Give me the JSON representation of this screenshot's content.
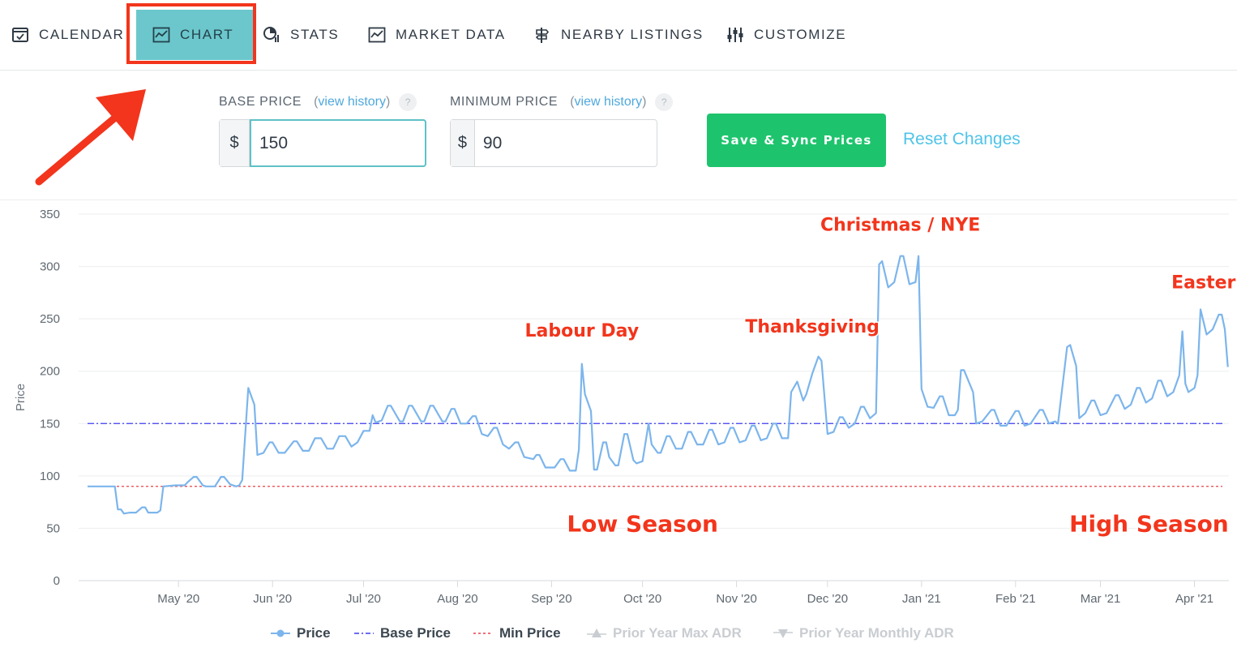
{
  "nav": {
    "tabs": [
      {
        "label": "CALENDAR",
        "icon": "calendar-check-icon"
      },
      {
        "label": "CHART",
        "icon": "line-chart-icon",
        "active": true
      },
      {
        "label": "STATS",
        "icon": "pie-stats-icon"
      },
      {
        "label": "MARKET DATA",
        "icon": "line-chart-icon"
      },
      {
        "label": "NEARBY LISTINGS",
        "icon": "signpost-icon"
      },
      {
        "label": "CUSTOMIZE",
        "icon": "sliders-icon"
      }
    ]
  },
  "pricing": {
    "base": {
      "label": "BASE PRICE",
      "history": "view history",
      "help": "?",
      "currency": "$",
      "value": "150"
    },
    "minimum": {
      "label": "MINIMUM PRICE",
      "history": "view history",
      "help": "?",
      "currency": "$",
      "value": "90"
    },
    "open_paren": "(",
    "close_paren": ")",
    "save_label": "Save & Sync Prices",
    "reset_label": "Reset Changes"
  },
  "colors": {
    "accent_tab": "#6cc7cc",
    "save_button": "#1ec46d",
    "link": "#4fc3e8",
    "price_line": "#7cb5ec",
    "base_line": "#3d3df0",
    "min_line": "#e8404a",
    "annotation": "#f2351c"
  },
  "chart_data": {
    "type": "line",
    "ylabel": "Price",
    "ylim": [
      0,
      350
    ],
    "yticks": [
      0,
      50,
      100,
      150,
      200,
      250,
      300,
      350
    ],
    "xlim": [
      "2020-04-01",
      "2021-04-07"
    ],
    "xticks": [
      {
        "label": "May '20",
        "date": "2020-05-01"
      },
      {
        "label": "Jun '20",
        "date": "2020-06-01"
      },
      {
        "label": "Jul '20",
        "date": "2020-07-01"
      },
      {
        "label": "Aug '20",
        "date": "2020-08-01"
      },
      {
        "label": "Sep '20",
        "date": "2020-09-01"
      },
      {
        "label": "Oct '20",
        "date": "2020-10-01"
      },
      {
        "label": "Nov '20",
        "date": "2020-11-01"
      },
      {
        "label": "Dec '20",
        "date": "2020-12-01"
      },
      {
        "label": "Jan '21",
        "date": "2021-01-01"
      },
      {
        "label": "Feb '21",
        "date": "2021-02-01"
      },
      {
        "label": "Mar '21",
        "date": "2021-03-01"
      },
      {
        "label": "Apr '21",
        "date": "2021-04-01"
      }
    ],
    "grid": true,
    "legend_position": "bottom",
    "series": [
      {
        "name": "Price",
        "points": [
          [
            "2020-04-01",
            90
          ],
          [
            "2020-04-10",
            90
          ],
          [
            "2020-04-11",
            68
          ],
          [
            "2020-04-12",
            68
          ],
          [
            "2020-04-13",
            64
          ],
          [
            "2020-04-15",
            65
          ],
          [
            "2020-04-17",
            65
          ],
          [
            "2020-04-19",
            70
          ],
          [
            "2020-04-20",
            70
          ],
          [
            "2020-04-21",
            65
          ],
          [
            "2020-04-24",
            65
          ],
          [
            "2020-04-25",
            67
          ],
          [
            "2020-04-26",
            90
          ],
          [
            "2020-04-30",
            91
          ],
          [
            "2020-05-03",
            91
          ],
          [
            "2020-05-04",
            94
          ],
          [
            "2020-05-06",
            99
          ],
          [
            "2020-05-07",
            99
          ],
          [
            "2020-05-09",
            91
          ],
          [
            "2020-05-10",
            90
          ],
          [
            "2020-05-13",
            90
          ],
          [
            "2020-05-15",
            99
          ],
          [
            "2020-05-16",
            99
          ],
          [
            "2020-05-18",
            92
          ],
          [
            "2020-05-20",
            90
          ],
          [
            "2020-05-21",
            91
          ],
          [
            "2020-05-22",
            96
          ],
          [
            "2020-05-24",
            184
          ],
          [
            "2020-05-26",
            168
          ],
          [
            "2020-05-27",
            120
          ],
          [
            "2020-05-29",
            122
          ],
          [
            "2020-05-31",
            132
          ],
          [
            "2020-06-01",
            132
          ],
          [
            "2020-06-03",
            122
          ],
          [
            "2020-06-05",
            122
          ],
          [
            "2020-06-08",
            133
          ],
          [
            "2020-06-09",
            133
          ],
          [
            "2020-06-11",
            124
          ],
          [
            "2020-06-13",
            124
          ],
          [
            "2020-06-15",
            136
          ],
          [
            "2020-06-17",
            136
          ],
          [
            "2020-06-19",
            126
          ],
          [
            "2020-06-21",
            126
          ],
          [
            "2020-06-23",
            138
          ],
          [
            "2020-06-25",
            138
          ],
          [
            "2020-06-27",
            128
          ],
          [
            "2020-06-29",
            132
          ],
          [
            "2020-07-01",
            143
          ],
          [
            "2020-07-03",
            143
          ],
          [
            "2020-07-04",
            158
          ],
          [
            "2020-07-05",
            151
          ],
          [
            "2020-07-07",
            153
          ],
          [
            "2020-07-09",
            167
          ],
          [
            "2020-07-10",
            167
          ],
          [
            "2020-07-13",
            152
          ],
          [
            "2020-07-14",
            152
          ],
          [
            "2020-07-16",
            167
          ],
          [
            "2020-07-17",
            167
          ],
          [
            "2020-07-20",
            152
          ],
          [
            "2020-07-21",
            152
          ],
          [
            "2020-07-23",
            167
          ],
          [
            "2020-07-24",
            167
          ],
          [
            "2020-07-27",
            152
          ],
          [
            "2020-07-28",
            152
          ],
          [
            "2020-07-30",
            164
          ],
          [
            "2020-07-31",
            164
          ],
          [
            "2020-08-02",
            150
          ],
          [
            "2020-08-04",
            150
          ],
          [
            "2020-08-06",
            157
          ],
          [
            "2020-08-07",
            157
          ],
          [
            "2020-08-09",
            140
          ],
          [
            "2020-08-11",
            138
          ],
          [
            "2020-08-13",
            146
          ],
          [
            "2020-08-14",
            146
          ],
          [
            "2020-08-16",
            130
          ],
          [
            "2020-08-18",
            126
          ],
          [
            "2020-08-20",
            132
          ],
          [
            "2020-08-21",
            132
          ],
          [
            "2020-08-23",
            118
          ],
          [
            "2020-08-26",
            116
          ],
          [
            "2020-08-27",
            120
          ],
          [
            "2020-08-28",
            120
          ],
          [
            "2020-08-30",
            108
          ],
          [
            "2020-09-02",
            108
          ],
          [
            "2020-09-04",
            116
          ],
          [
            "2020-09-05",
            116
          ],
          [
            "2020-09-07",
            105
          ],
          [
            "2020-09-09",
            105
          ],
          [
            "2020-09-10",
            125
          ],
          [
            "2020-09-11",
            207
          ],
          [
            "2020-09-12",
            178
          ],
          [
            "2020-09-14",
            162
          ],
          [
            "2020-09-15",
            106
          ],
          [
            "2020-09-16",
            106
          ],
          [
            "2020-09-18",
            132
          ],
          [
            "2020-09-19",
            132
          ],
          [
            "2020-09-20",
            118
          ],
          [
            "2020-09-22",
            110
          ],
          [
            "2020-09-23",
            110
          ],
          [
            "2020-09-25",
            140
          ],
          [
            "2020-09-26",
            140
          ],
          [
            "2020-09-28",
            115
          ],
          [
            "2020-09-29",
            112
          ],
          [
            "2020-10-01",
            114
          ],
          [
            "2020-10-03",
            150
          ],
          [
            "2020-10-04",
            130
          ],
          [
            "2020-10-06",
            122
          ],
          [
            "2020-10-07",
            122
          ],
          [
            "2020-10-09",
            138
          ],
          [
            "2020-10-10",
            138
          ],
          [
            "2020-10-12",
            126
          ],
          [
            "2020-10-14",
            126
          ],
          [
            "2020-10-16",
            142
          ],
          [
            "2020-10-17",
            142
          ],
          [
            "2020-10-19",
            130
          ],
          [
            "2020-10-21",
            130
          ],
          [
            "2020-10-23",
            144
          ],
          [
            "2020-10-24",
            144
          ],
          [
            "2020-10-26",
            130
          ],
          [
            "2020-10-28",
            132
          ],
          [
            "2020-10-30",
            146
          ],
          [
            "2020-10-31",
            146
          ],
          [
            "2020-11-02",
            132
          ],
          [
            "2020-11-04",
            134
          ],
          [
            "2020-11-06",
            148
          ],
          [
            "2020-11-07",
            148
          ],
          [
            "2020-11-09",
            134
          ],
          [
            "2020-11-11",
            136
          ],
          [
            "2020-11-13",
            150
          ],
          [
            "2020-11-14",
            150
          ],
          [
            "2020-11-16",
            136
          ],
          [
            "2020-11-18",
            136
          ],
          [
            "2020-11-19",
            180
          ],
          [
            "2020-11-21",
            190
          ],
          [
            "2020-11-23",
            172
          ],
          [
            "2020-11-24",
            178
          ],
          [
            "2020-11-26",
            198
          ],
          [
            "2020-11-28",
            214
          ],
          [
            "2020-11-29",
            210
          ],
          [
            "2020-12-01",
            140
          ],
          [
            "2020-12-03",
            142
          ],
          [
            "2020-12-05",
            156
          ],
          [
            "2020-12-06",
            156
          ],
          [
            "2020-12-08",
            146
          ],
          [
            "2020-12-10",
            150
          ],
          [
            "2020-12-12",
            166
          ],
          [
            "2020-12-13",
            166
          ],
          [
            "2020-12-15",
            155
          ],
          [
            "2020-12-17",
            160
          ],
          [
            "2020-12-18",
            302
          ],
          [
            "2020-12-19",
            305
          ],
          [
            "2020-12-21",
            280
          ],
          [
            "2020-12-23",
            285
          ],
          [
            "2020-12-25",
            310
          ],
          [
            "2020-12-26",
            310
          ],
          [
            "2020-12-28",
            283
          ],
          [
            "2020-12-30",
            285
          ],
          [
            "2020-12-31",
            310
          ],
          [
            "2021-01-01",
            183
          ],
          [
            "2021-01-03",
            166
          ],
          [
            "2021-01-05",
            165
          ],
          [
            "2021-01-07",
            176
          ],
          [
            "2021-01-08",
            176
          ],
          [
            "2021-01-10",
            158
          ],
          [
            "2021-01-12",
            158
          ],
          [
            "2021-01-13",
            163
          ],
          [
            "2021-01-14",
            201
          ],
          [
            "2021-01-15",
            201
          ],
          [
            "2021-01-18",
            180
          ],
          [
            "2021-01-19",
            150
          ],
          [
            "2021-01-21",
            152
          ],
          [
            "2021-01-24",
            163
          ],
          [
            "2021-01-25",
            163
          ],
          [
            "2021-01-27",
            148
          ],
          [
            "2021-01-29",
            148
          ],
          [
            "2021-02-01",
            162
          ],
          [
            "2021-02-02",
            162
          ],
          [
            "2021-02-04",
            148
          ],
          [
            "2021-02-06",
            150
          ],
          [
            "2021-02-09",
            163
          ],
          [
            "2021-02-10",
            163
          ],
          [
            "2021-02-12",
            150
          ],
          [
            "2021-02-14",
            152
          ],
          [
            "2021-02-15",
            150
          ],
          [
            "2021-02-18",
            223
          ],
          [
            "2021-02-19",
            225
          ],
          [
            "2021-02-21",
            205
          ],
          [
            "2021-02-22",
            155
          ],
          [
            "2021-02-24",
            160
          ],
          [
            "2021-02-26",
            172
          ],
          [
            "2021-02-27",
            172
          ],
          [
            "2021-03-01",
            158
          ],
          [
            "2021-03-03",
            160
          ],
          [
            "2021-03-06",
            177
          ],
          [
            "2021-03-07",
            177
          ],
          [
            "2021-03-09",
            164
          ],
          [
            "2021-03-11",
            168
          ],
          [
            "2021-03-13",
            184
          ],
          [
            "2021-03-14",
            184
          ],
          [
            "2021-03-16",
            170
          ],
          [
            "2021-03-18",
            174
          ],
          [
            "2021-03-20",
            191
          ],
          [
            "2021-03-21",
            191
          ],
          [
            "2021-03-23",
            176
          ],
          [
            "2021-03-25",
            180
          ],
          [
            "2021-03-27",
            196
          ],
          [
            "2021-03-28",
            238
          ],
          [
            "2021-03-29",
            188
          ],
          [
            "2021-03-30",
            180
          ],
          [
            "2021-04-01",
            184
          ],
          [
            "2021-04-02",
            196
          ],
          [
            "2021-04-03",
            259
          ],
          [
            "2021-04-05",
            235
          ],
          [
            "2021-04-07",
            240
          ],
          [
            "2021-04-09",
            254
          ],
          [
            "2021-04-10",
            254
          ],
          [
            "2021-04-11",
            240
          ],
          [
            "2021-04-12",
            204
          ]
        ]
      },
      {
        "name": "Base Price",
        "value": 150
      },
      {
        "name": "Min Price",
        "value": 90
      },
      {
        "name": "Prior Year Max ADR",
        "hidden": true
      },
      {
        "name": "Prior Year Monthly ADR",
        "hidden": true
      }
    ],
    "annotations": [
      {
        "text": "Labour Day",
        "date": "2020-09-11",
        "value": 233
      },
      {
        "text": "Thanksgiving",
        "date": "2020-11-26",
        "value": 237
      },
      {
        "text": "Christmas / NYE",
        "date": "2020-12-25",
        "value": 334
      },
      {
        "text": "Easter",
        "date": "2021-04-04",
        "value": 279
      },
      {
        "text": "Low Season",
        "date": "2020-10-01",
        "value": 47
      },
      {
        "text": "High Season",
        "date": "2021-03-17",
        "value": 47
      }
    ]
  }
}
